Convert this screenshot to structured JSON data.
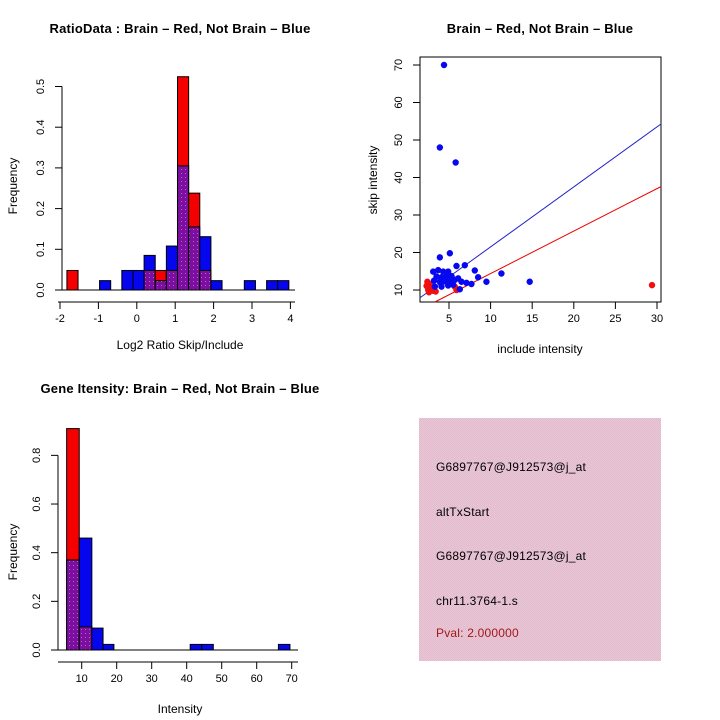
{
  "colors": {
    "bar_red": "#F40000",
    "bar_blue": "#0505EE",
    "overlap_purple": "#7C0EA0",
    "overlap_purple_dot": "#AF62C8",
    "point_red": "#F01010",
    "point_blue": "#0808F0",
    "line_red": "#EE0000",
    "line_blue": "#2222CC",
    "axis_black": "#000000",
    "info_box_pink": "#F6B2C3",
    "info_box_dither": "#D5D0E0",
    "pval_text": "#A21919"
  },
  "chart_data": [
    {
      "id": "ratio_hist",
      "type": "bar",
      "title": "RatioData : Brain – Red, Not Brain – Blue",
      "xlabel": "Log2 Ratio Skip/Include",
      "ylabel": "Frequency",
      "xlim": [
        -2.1,
        4.2
      ],
      "ylim": [
        0,
        0.53
      ],
      "xticks": [
        -2,
        -1,
        0,
        1,
        2,
        3,
        4
      ],
      "xtick_labels": [
        "-2",
        "-1",
        "0",
        "1",
        "2",
        "3",
        "4"
      ],
      "yticks": [
        0,
        0.1,
        0.2,
        0.3,
        0.4,
        0.5
      ],
      "ytick_labels": [
        "0.0",
        "0.1",
        "0.2",
        "0.3",
        "0.4",
        "0.5"
      ],
      "legend_note": "purple = overlap of red and blue histograms",
      "bars": [
        {
          "x0": -1.82,
          "x1": -1.53,
          "top": 0.048,
          "overlap": 0,
          "color": "red"
        },
        {
          "x0": -0.97,
          "x1": -0.68,
          "top": 0.023,
          "overlap": 0,
          "color": "blue"
        },
        {
          "x0": -0.39,
          "x1": -0.1,
          "top": 0.048,
          "overlap": 0,
          "color": "blue"
        },
        {
          "x0": -0.1,
          "x1": 0.19,
          "top": 0.048,
          "overlap": 0,
          "color": "blue"
        },
        {
          "x0": 0.19,
          "x1": 0.48,
          "top": 0.085,
          "overlap": 0.048,
          "color": "blue"
        },
        {
          "x0": 0.48,
          "x1": 0.77,
          "top": 0.048,
          "overlap": 0.023,
          "color": "red"
        },
        {
          "x0": 0.77,
          "x1": 1.06,
          "top": 0.108,
          "overlap": 0.048,
          "color": "blue"
        },
        {
          "x0": 1.06,
          "x1": 1.35,
          "top": 0.524,
          "overlap": 0.305,
          "color": "red"
        },
        {
          "x0": 1.35,
          "x1": 1.64,
          "top": 0.238,
          "overlap": 0.155,
          "color": "red"
        },
        {
          "x0": 1.64,
          "x1": 1.93,
          "top": 0.131,
          "overlap": 0.048,
          "color": "blue"
        },
        {
          "x0": 1.93,
          "x1": 2.22,
          "top": 0.023,
          "overlap": 0,
          "color": "blue"
        },
        {
          "x0": 2.8,
          "x1": 3.09,
          "top": 0.023,
          "overlap": 0,
          "color": "blue"
        },
        {
          "x0": 3.38,
          "x1": 3.67,
          "top": 0.023,
          "overlap": 0,
          "color": "blue"
        },
        {
          "x0": 3.67,
          "x1": 3.96,
          "top": 0.023,
          "overlap": 0,
          "color": "blue"
        }
      ]
    },
    {
      "id": "scatter",
      "type": "scatter",
      "title": "Brain – Red, Not Brain – Blue",
      "xlabel": "include intensity",
      "ylabel": "skip intensity",
      "xlim": [
        1.5,
        30.5
      ],
      "ylim": [
        6.8,
        72.1
      ],
      "xticks": [
        5,
        10,
        15,
        20,
        25,
        30
      ],
      "xtick_labels": [
        "5",
        "10",
        "15",
        "20",
        "25",
        "30"
      ],
      "yticks": [
        10,
        20,
        30,
        40,
        50,
        60,
        70
      ],
      "ytick_labels": [
        "10",
        "20",
        "30",
        "40",
        "50",
        "60",
        "70"
      ],
      "blue_points": [
        [
          4.4,
          70
        ],
        [
          3.9,
          48
        ],
        [
          5.8,
          44
        ],
        [
          3.9,
          18.7
        ],
        [
          5.1,
          19.8
        ],
        [
          5.9,
          16.4
        ],
        [
          6.9,
          16.6
        ],
        [
          3.1,
          14.9
        ],
        [
          3.7,
          15.3
        ],
        [
          4.3,
          14.9
        ],
        [
          4.9,
          14.9
        ],
        [
          3.5,
          13.6
        ],
        [
          4.1,
          13.4
        ],
        [
          4.7,
          13.6
        ],
        [
          5.3,
          13.7
        ],
        [
          3.2,
          12.5
        ],
        [
          3.9,
          12.2
        ],
        [
          4.5,
          12.3
        ],
        [
          5.1,
          12.5
        ],
        [
          5.7,
          12.7
        ],
        [
          6.1,
          13.1
        ],
        [
          6.5,
          12.2
        ],
        [
          7.1,
          11.9
        ],
        [
          7.7,
          11.6
        ],
        [
          3.3,
          10.9
        ],
        [
          4.1,
          10.9
        ],
        [
          4.9,
          11.2
        ],
        [
          5.5,
          11.4
        ],
        [
          6.3,
          10.2
        ],
        [
          8.1,
          15.2
        ],
        [
          8.5,
          13.4
        ],
        [
          9.5,
          12.2
        ],
        [
          11.3,
          14.4
        ],
        [
          14.7,
          12.2
        ]
      ],
      "red_points": [
        [
          2.4,
          12.2
        ],
        [
          2.3,
          11.1
        ],
        [
          2.7,
          11.6
        ],
        [
          2.9,
          10.4
        ],
        [
          2.5,
          10.0
        ],
        [
          3.1,
          9.8
        ],
        [
          2.6,
          9.4
        ],
        [
          3.0,
          10.9
        ],
        [
          3.4,
          9.6
        ],
        [
          5.7,
          10.9
        ],
        [
          5.9,
          10.0
        ],
        [
          29.4,
          11.3
        ]
      ],
      "blue_line": {
        "x1": 1.5,
        "y1": 7.9,
        "x2": 30.5,
        "y2": 54.3
      },
      "red_line": {
        "x1": 3.3,
        "y1": 6.8,
        "x2": 30.5,
        "y2": 37.6
      }
    },
    {
      "id": "gene_hist",
      "type": "bar",
      "title": "Gene Itensity: Brain – Red, Not Brain – Blue",
      "xlabel": "Intensity",
      "ylabel": "Frequency",
      "xlim": [
        4.5,
        71
      ],
      "ylim": [
        0,
        0.92
      ],
      "xticks": [
        10,
        20,
        30,
        40,
        50,
        60,
        70
      ],
      "xtick_labels": [
        "10",
        "20",
        "30",
        "40",
        "50",
        "60",
        "70"
      ],
      "yticks": [
        0,
        0.2,
        0.4,
        0.6,
        0.8
      ],
      "ytick_labels": [
        "0.0",
        "0.2",
        "0.4",
        "0.6",
        "0.8"
      ],
      "legend_note": "purple = overlap of red and blue histograms",
      "bars": [
        {
          "x0": 5.7,
          "x1": 9.3,
          "top": 0.91,
          "overlap": 0.37,
          "color": "red"
        },
        {
          "x0": 9.3,
          "x1": 12.9,
          "top": 0.46,
          "overlap": 0.095,
          "color": "blue"
        },
        {
          "x0": 12.9,
          "x1": 16.1,
          "top": 0.09,
          "overlap": 0,
          "color": "blue"
        },
        {
          "x0": 16.1,
          "x1": 19.2,
          "top": 0.023,
          "overlap": 0,
          "color": "blue"
        },
        {
          "x0": 41.0,
          "x1": 44.3,
          "top": 0.023,
          "overlap": 0,
          "color": "blue"
        },
        {
          "x0": 44.3,
          "x1": 47.6,
          "top": 0.023,
          "overlap": 0,
          "color": "blue"
        },
        {
          "x0": 66.2,
          "x1": 69.5,
          "top": 0.023,
          "overlap": 0,
          "color": "blue"
        }
      ]
    }
  ],
  "info_panel": {
    "lines": [
      "G6897767@J912573@j_at",
      "altTxStart",
      "G6897767@J912573@j_at",
      "chr11.3764-1.s"
    ],
    "pval": "Pval: 2.000000"
  }
}
